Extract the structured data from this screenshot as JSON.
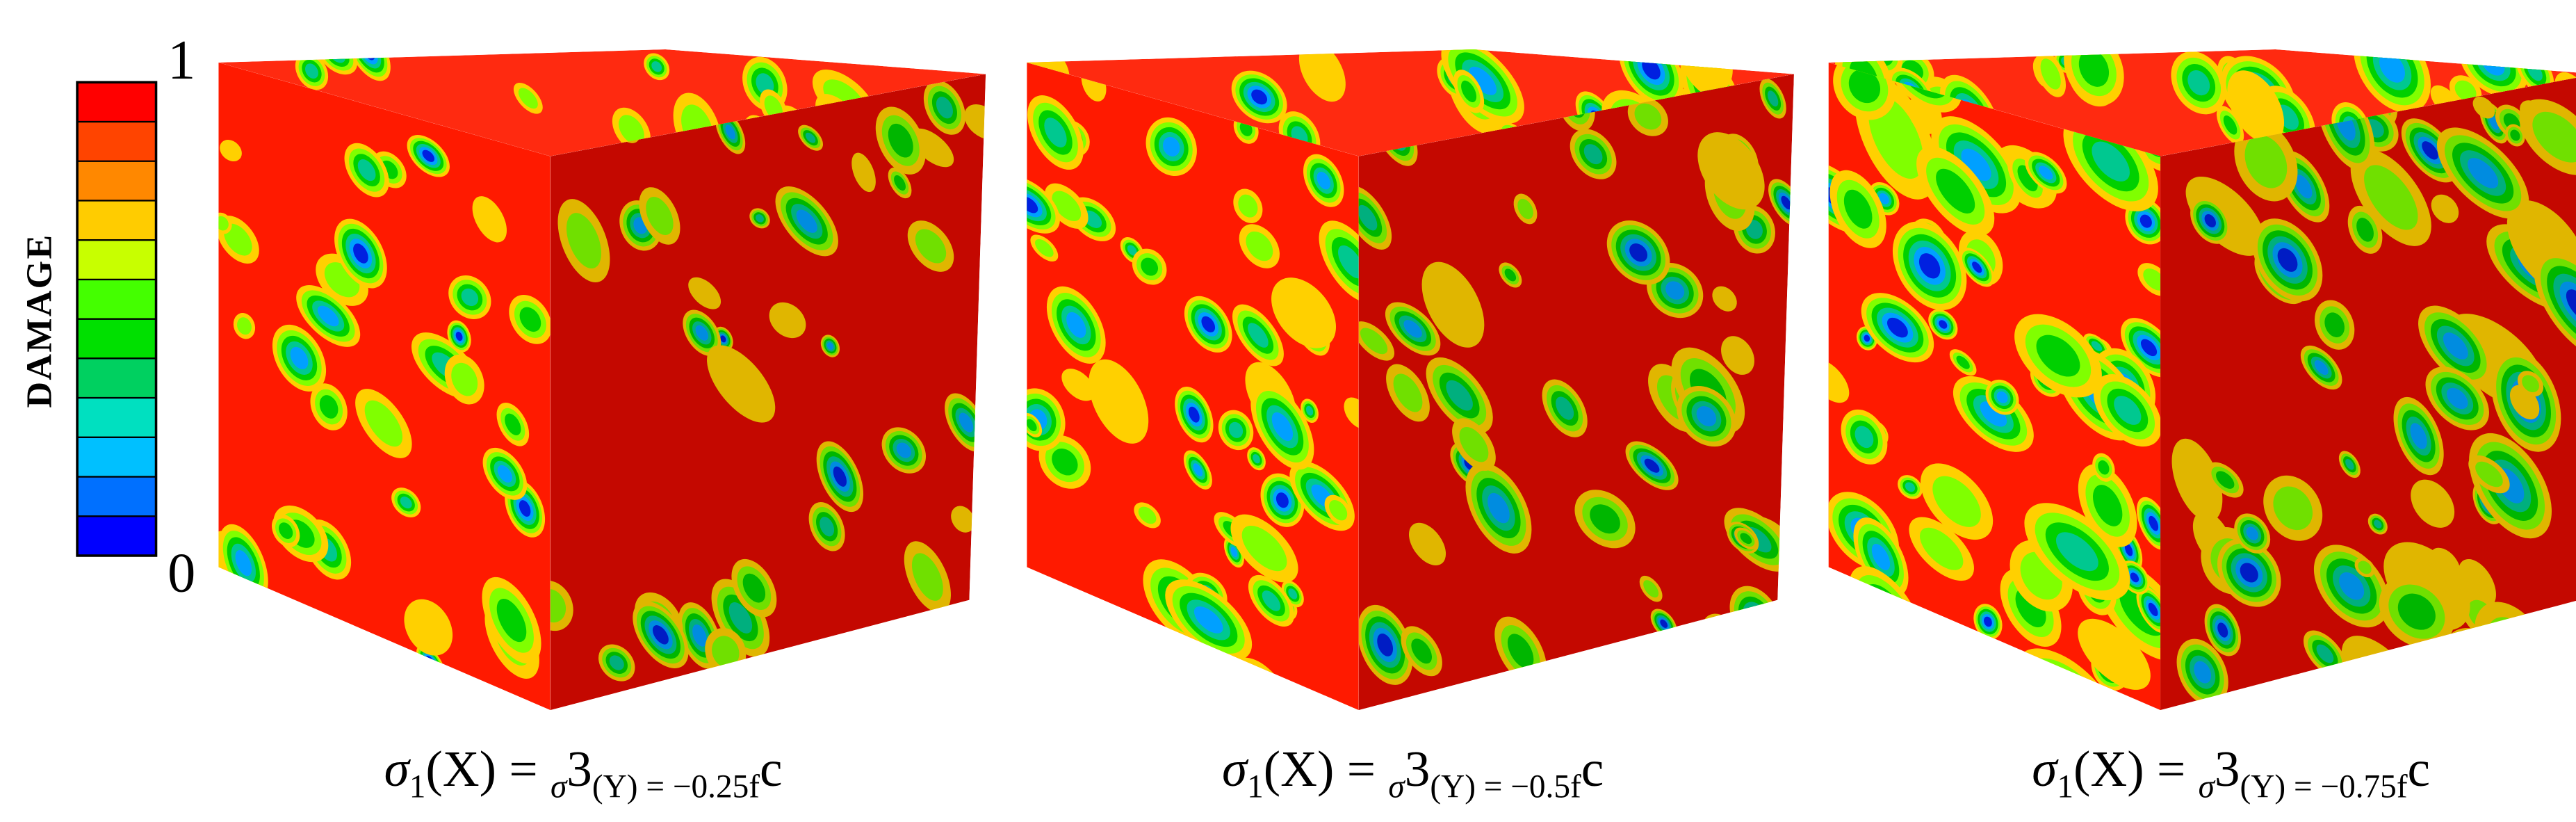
{
  "legend": {
    "title": "DAMAGE",
    "max_label": "1",
    "min_label": "0"
  },
  "panels": [
    {
      "caption": [
        "σ",
        "1",
        "(X) = ",
        "σ",
        "3",
        "(Y) = −0.25f",
        "c"
      ]
    },
    {
      "caption": [
        "σ",
        "1",
        "(X) = ",
        "σ",
        "3",
        "(Y) = −0.5f",
        "c"
      ]
    },
    {
      "caption": [
        "σ",
        "1",
        "(X) = ",
        "σ",
        "3",
        "(Y) = −0.75f",
        "c"
      ]
    }
  ]
}
